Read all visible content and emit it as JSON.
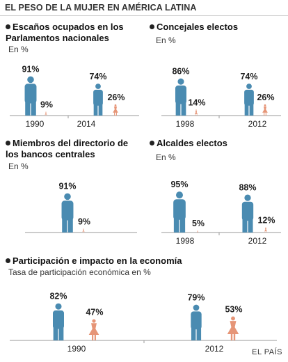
{
  "title": "EL PESO DE LA MUJER EN AMÉRICA LATINA",
  "source": "EL PAÍS",
  "colors": {
    "man": "#4a8bb1",
    "woman": "#e69577",
    "axis": "#9a9a9a"
  },
  "panels": [
    {
      "title_lines": [
        "Escaños ocupados en los",
        "Parlamentos nacionales"
      ],
      "subtitle": "En %"
    },
    {
      "title_lines": [
        "Concejales electos"
      ],
      "subtitle": "En %"
    },
    {
      "title_lines": [
        "Miembros del directorio de",
        "los bancos centrales"
      ],
      "subtitle": "En %"
    },
    {
      "title_lines": [
        "Alcaldes electos"
      ],
      "subtitle": "En %"
    },
    {
      "title_lines": [
        "Participación e impacto en la economía"
      ],
      "subtitle": "Tasa de participación económica en %"
    }
  ],
  "chart_data": [
    {
      "type": "bar",
      "title": "Escaños ocupados en los Parlamentos nacionales",
      "ylabel": "En %",
      "categories": [
        "1990",
        "2014"
      ],
      "series": [
        {
          "glyph": "man",
          "values": [
            91,
            74
          ],
          "labels": [
            "91%",
            "74%"
          ]
        },
        {
          "glyph": "woman",
          "values": [
            9,
            26
          ],
          "labels": [
            "9%",
            "26%"
          ]
        }
      ],
      "ylim": [
        0,
        100
      ]
    },
    {
      "type": "bar",
      "title": "Concejales electos",
      "ylabel": "En %",
      "categories": [
        "1998",
        "2012"
      ],
      "series": [
        {
          "glyph": "man",
          "values": [
            86,
            74
          ],
          "labels": [
            "86%",
            "74%"
          ]
        },
        {
          "glyph": "woman",
          "values": [
            14,
            26
          ],
          "labels": [
            "14%",
            "26%"
          ]
        }
      ],
      "ylim": [
        0,
        100
      ]
    },
    {
      "type": "bar",
      "title": "Miembros del directorio de los bancos centrales",
      "ylabel": "En %",
      "categories": [
        ""
      ],
      "series": [
        {
          "glyph": "man",
          "values": [
            91
          ],
          "labels": [
            "91%"
          ]
        },
        {
          "glyph": "woman",
          "values": [
            9
          ],
          "labels": [
            "9%"
          ]
        }
      ],
      "ylim": [
        0,
        100
      ]
    },
    {
      "type": "bar",
      "title": "Alcaldes electos",
      "ylabel": "En %",
      "categories": [
        "1998",
        "2012"
      ],
      "series": [
        {
          "glyph": "man",
          "values": [
            95,
            88
          ],
          "labels": [
            "95%",
            "88%"
          ]
        },
        {
          "glyph": "woman",
          "values": [
            5,
            12
          ],
          "labels": [
            "5%",
            "12%"
          ]
        }
      ],
      "ylim": [
        0,
        100
      ]
    },
    {
      "type": "bar",
      "title": "Participación e impacto en la economía",
      "ylabel": "Tasa de participación económica en %",
      "categories": [
        "1990",
        "2012"
      ],
      "series": [
        {
          "glyph": "man",
          "values": [
            82,
            79
          ],
          "labels": [
            "82%",
            "79%"
          ]
        },
        {
          "glyph": "woman",
          "values": [
            47,
            53
          ],
          "labels": [
            "47%",
            "53%"
          ]
        }
      ],
      "ylim": [
        0,
        100
      ]
    }
  ]
}
